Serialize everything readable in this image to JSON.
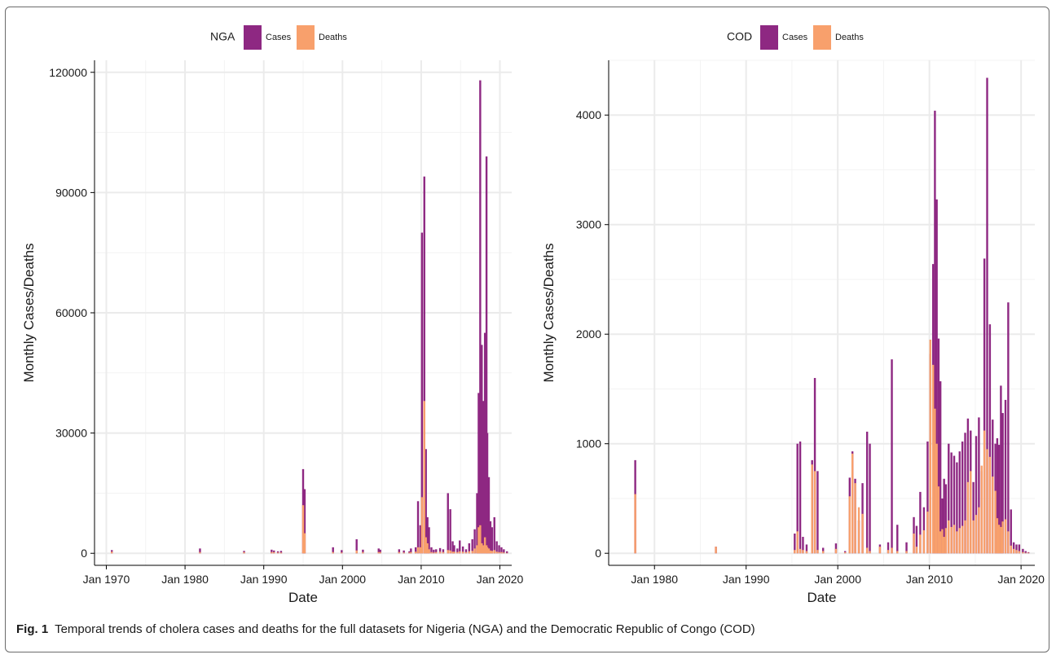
{
  "caption": {
    "label": "Fig. 1",
    "text": "Temporal trends of cholera cases and deaths for the full datasets for Nigeria (NGA) and the Democratic Republic of Congo (COD)"
  },
  "colors": {
    "cases": "#8e2882",
    "deaths": "#f8a06c",
    "grid": "#ebebeb",
    "grid_minor": "#f3f3f3"
  },
  "chart_data": [
    {
      "type": "bar",
      "stacking": "overlay",
      "legend_title": "NGA",
      "legend_position": "top",
      "xlabel": "Date",
      "ylabel": "Monthly Cases/Deaths",
      "xlim": [
        1968.5,
        2021.5
      ],
      "ylim": [
        -3000,
        123000
      ],
      "x_ticks": [
        1970,
        1980,
        1990,
        2000,
        2010,
        2020
      ],
      "x_tick_labels": [
        "Jan 1970",
        "Jan 1980",
        "Jan 1990",
        "Jan 2000",
        "Jan 2010",
        "Jan 2020"
      ],
      "y_ticks": [
        0,
        30000,
        60000,
        90000,
        120000
      ],
      "y_tick_labels": [
        "0",
        "30000",
        "60000",
        "90000",
        "120000"
      ],
      "grid": true,
      "series": [
        {
          "name": "Cases",
          "x": [
            1970.7,
            1981.9,
            1987.5,
            1991.0,
            1991.3,
            1991.8,
            1992.2,
            1995.0,
            1995.2,
            1998.8,
            1999.9,
            2001.8,
            2002.6,
            2004.6,
            2004.8,
            2007.2,
            2007.8,
            2008.5,
            2008.7,
            2009.3,
            2009.6,
            2009.9,
            2010.1,
            2010.4,
            2010.6,
            2010.8,
            2011.0,
            2011.3,
            2011.6,
            2011.9,
            2012.4,
            2012.8,
            2013.4,
            2013.7,
            2014.0,
            2014.2,
            2014.6,
            2014.9,
            2015.3,
            2015.7,
            2016.1,
            2016.5,
            2016.8,
            2017.1,
            2017.3,
            2017.5,
            2017.7,
            2017.9,
            2018.1,
            2018.3,
            2018.4,
            2018.6,
            2018.8,
            2019.0,
            2019.3,
            2019.6,
            2019.9,
            2020.2,
            2020.5,
            2020.9
          ],
          "values": [
            800,
            1200,
            600,
            900,
            700,
            500,
            600,
            21000,
            16000,
            1500,
            800,
            3500,
            900,
            1200,
            900,
            1000,
            700,
            500,
            1200,
            1500,
            13000,
            7000,
            80000,
            94000,
            26000,
            9000,
            6500,
            1500,
            900,
            1000,
            1300,
            1000,
            15000,
            11000,
            3000,
            2000,
            1200,
            3200,
            1700,
            1000,
            2500,
            3500,
            6000,
            15000,
            40000,
            118000,
            52000,
            38000,
            55000,
            99000,
            30000,
            19000,
            8000,
            6500,
            9000,
            3000,
            2000,
            1500,
            1000,
            500
          ]
        },
        {
          "name": "Deaths",
          "x": [
            1970.7,
            1981.9,
            1987.5,
            1991.0,
            1991.3,
            1991.8,
            1992.2,
            1995.0,
            1995.2,
            1998.8,
            1999.9,
            2001.8,
            2002.6,
            2004.6,
            2004.8,
            2007.2,
            2007.8,
            2008.5,
            2008.7,
            2009.3,
            2009.6,
            2009.9,
            2010.1,
            2010.4,
            2010.6,
            2010.8,
            2011.0,
            2011.3,
            2011.6,
            2011.9,
            2012.4,
            2012.8,
            2013.4,
            2013.7,
            2014.0,
            2014.2,
            2014.6,
            2014.9,
            2015.3,
            2015.7,
            2016.1,
            2016.5,
            2016.8,
            2017.1,
            2017.3,
            2017.5,
            2017.7,
            2017.9,
            2018.1,
            2018.3,
            2018.4,
            2018.6,
            2018.8,
            2019.0,
            2019.3,
            2019.6,
            2019.9,
            2020.2,
            2020.5,
            2020.9
          ],
          "values": [
            400,
            300,
            300,
            300,
            300,
            200,
            200,
            12000,
            5000,
            300,
            200,
            700,
            300,
            300,
            300,
            300,
            200,
            200,
            300,
            400,
            1500,
            1500,
            14000,
            38000,
            4000,
            2500,
            1000,
            300,
            200,
            300,
            400,
            300,
            800,
            700,
            400,
            400,
            300,
            500,
            400,
            300,
            500,
            600,
            1200,
            2000,
            6500,
            7000,
            2500,
            2000,
            4000,
            2000,
            1500,
            1200,
            700,
            600,
            800,
            400,
            300,
            300,
            200,
            100
          ]
        }
      ]
    },
    {
      "type": "bar",
      "stacking": "overlay",
      "legend_title": "COD",
      "legend_position": "top",
      "xlabel": "Date",
      "ylabel": "Monthly Cases/Deaths",
      "xlim": [
        1975.0,
        2021.5
      ],
      "ylim": [
        -110,
        4500
      ],
      "x_ticks": [
        1980,
        1990,
        2000,
        2010,
        2020
      ],
      "x_tick_labels": [
        "Jan 1980",
        "Jan 1990",
        "Jan 2000",
        "Jan 2010",
        "Jan 2020"
      ],
      "y_ticks": [
        0,
        1000,
        2000,
        3000,
        4000
      ],
      "y_tick_labels": [
        "0",
        "1000",
        "2000",
        "3000",
        "4000"
      ],
      "grid": true,
      "series": [
        {
          "name": "Cases",
          "x": [
            1977.9,
            1986.7,
            1995.3,
            1995.6,
            1995.9,
            1996.2,
            1996.6,
            1997.2,
            1997.5,
            1997.8,
            1998.4,
            1999.8,
            2000.8,
            2001.3,
            2001.6,
            2001.9,
            2002.3,
            2002.7,
            2003.2,
            2003.5,
            2004.6,
            2005.5,
            2005.9,
            2006.5,
            2007.5,
            2008.3,
            2008.6,
            2009.0,
            2009.4,
            2009.8,
            2010.1,
            2010.4,
            2010.6,
            2010.8,
            2011.0,
            2011.2,
            2011.4,
            2011.6,
            2011.8,
            2012.1,
            2012.4,
            2012.7,
            2013.0,
            2013.3,
            2013.6,
            2013.9,
            2014.2,
            2014.5,
            2014.8,
            2015.1,
            2015.4,
            2015.7,
            2016.0,
            2016.3,
            2016.6,
            2016.9,
            2017.2,
            2017.4,
            2017.6,
            2017.8,
            2018.0,
            2018.3,
            2018.6,
            2018.9,
            2019.2,
            2019.5,
            2019.8,
            2020.2,
            2020.5,
            2020.8
          ],
          "values": [
            850,
            60,
            180,
            1000,
            1020,
            150,
            80,
            850,
            1600,
            750,
            50,
            90,
            20,
            690,
            930,
            680,
            300,
            640,
            1110,
            1000,
            80,
            100,
            1770,
            260,
            100,
            330,
            250,
            560,
            420,
            1020,
            1820,
            2640,
            4040,
            3230,
            1960,
            1570,
            500,
            680,
            630,
            1000,
            920,
            890,
            830,
            930,
            1020,
            1100,
            1230,
            1120,
            650,
            1070,
            1240,
            750,
            2690,
            4340,
            2090,
            1220,
            1000,
            1050,
            990,
            1530,
            1280,
            1400,
            2290,
            400,
            100,
            80,
            80,
            40,
            20,
            10
          ],
          "values_note": ""
        },
        {
          "name": "Deaths",
          "x": [
            1977.9,
            1986.7,
            1995.3,
            1995.6,
            1995.9,
            1996.2,
            1996.6,
            1997.2,
            1997.5,
            1997.8,
            1998.4,
            1999.8,
            2000.8,
            2001.3,
            2001.6,
            2001.9,
            2002.3,
            2002.7,
            2003.2,
            2003.5,
            2004.6,
            2005.5,
            2005.9,
            2006.5,
            2007.5,
            2008.3,
            2008.6,
            2009.0,
            2009.4,
            2009.8,
            2010.1,
            2010.4,
            2010.6,
            2010.8,
            2011.0,
            2011.2,
            2011.4,
            2011.6,
            2011.8,
            2012.1,
            2012.4,
            2012.7,
            2013.0,
            2013.3,
            2013.6,
            2013.9,
            2014.2,
            2014.5,
            2014.8,
            2015.1,
            2015.4,
            2015.7,
            2016.0,
            2016.3,
            2016.6,
            2016.9,
            2017.2,
            2017.4,
            2017.6,
            2017.8,
            2018.0,
            2018.3,
            2018.6,
            2018.9,
            2019.2,
            2019.5,
            2019.8,
            2020.2,
            2020.5,
            2020.8
          ],
          "values": [
            540,
            60,
            30,
            200,
            40,
            30,
            20,
            810,
            750,
            30,
            20,
            40,
            10,
            520,
            910,
            640,
            420,
            360,
            50,
            20,
            60,
            30,
            50,
            20,
            20,
            180,
            60,
            170,
            210,
            380,
            1950,
            1720,
            1320,
            1000,
            610,
            200,
            220,
            150,
            230,
            300,
            240,
            260,
            200,
            230,
            250,
            300,
            650,
            750,
            300,
            350,
            420,
            800,
            1120,
            950,
            880,
            700,
            570,
            320,
            260,
            240,
            290,
            310,
            200,
            70,
            40,
            30,
            20,
            10,
            5,
            5
          ]
        }
      ]
    }
  ]
}
